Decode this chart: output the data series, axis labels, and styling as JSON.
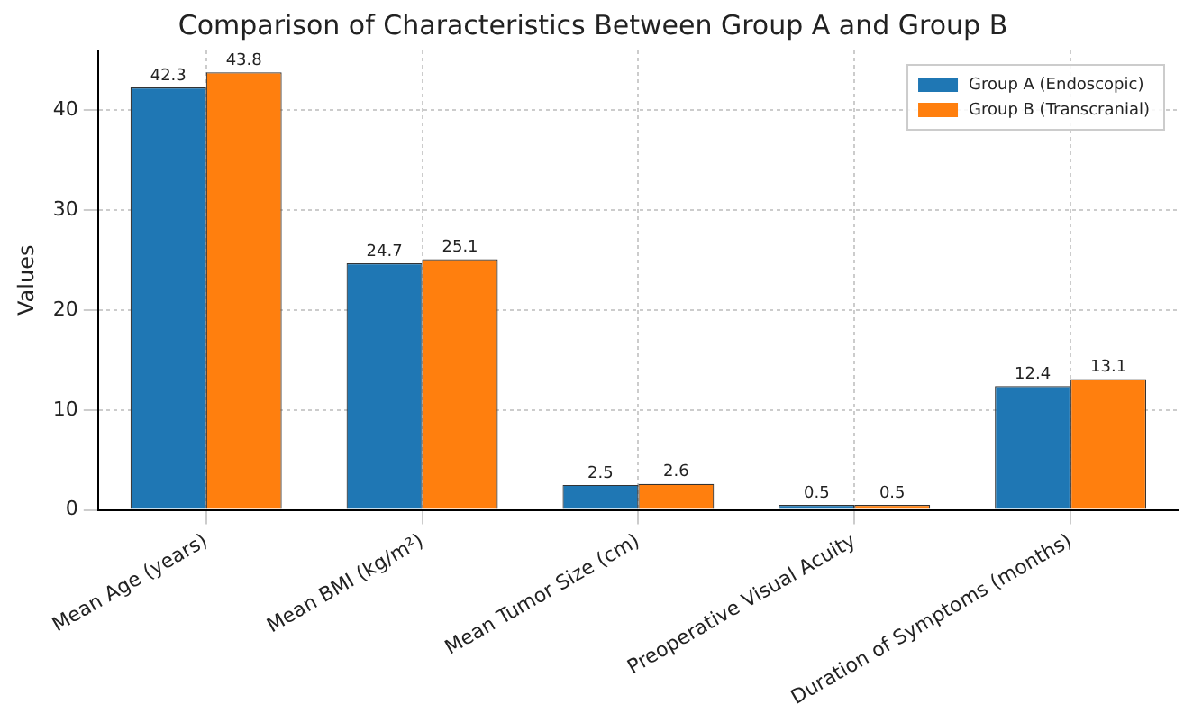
{
  "chart_data": {
    "type": "bar",
    "title": "Comparison of Characteristics Between Group A and Group B",
    "ylabel": "Values",
    "categories": [
      "Mean Age (years)",
      "Mean BMI (kg/m²)",
      "Mean Tumor Size (cm)",
      "Preoperative Visual Acuity",
      "Duration of Symptoms (months)"
    ],
    "series": [
      {
        "name": "Group A (Endoscopic)",
        "color": "#1f77b4",
        "values": [
          42.3,
          24.7,
          2.5,
          0.5,
          12.4
        ]
      },
      {
        "name": "Group B (Transcranial)",
        "color": "#ff7f0e",
        "values": [
          43.8,
          25.1,
          2.6,
          0.5,
          13.1
        ]
      }
    ],
    "ylim": [
      0,
      46
    ],
    "yticks": [
      0,
      10,
      20,
      30,
      40
    ],
    "grid": true,
    "legend": "top right",
    "data_labels": true
  }
}
